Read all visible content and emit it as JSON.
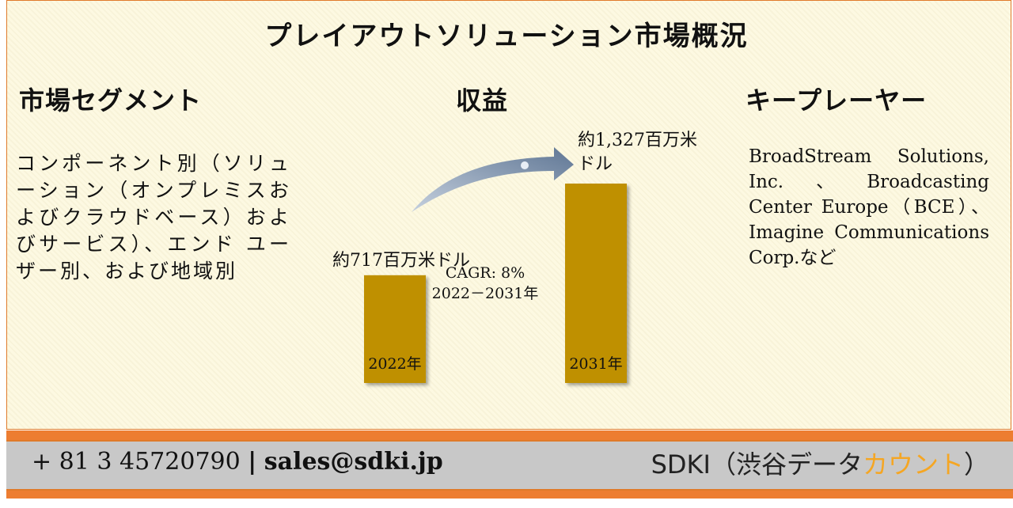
{
  "title": "プレイアウトソリューション市場概況",
  "segments": {
    "heading": "市場セグメント",
    "text": "コンポーネント別（ソリューション（オンプレミスおよびクラウドベース）およびサービス）、エンド ユーザー別、および地域別"
  },
  "revenue": {
    "heading": "収益"
  },
  "players": {
    "heading": "キープレーヤー",
    "text": "BroadStream Solutions, Inc.、Broadcasting Center Europe（BCE）、Imagine Communications Corp.など"
  },
  "chart_data": {
    "type": "bar",
    "categories": [
      "2022年",
      "2031年"
    ],
    "values": [
      717,
      1327
    ],
    "value_labels": [
      "約717百万米ドル",
      "約1,327百万米ドル"
    ],
    "annotation": [
      "CAGR: 8%",
      "2022－2031年"
    ],
    "bar_color": "#bf9000",
    "arrow_color": "#8497b0"
  },
  "footer": {
    "phone": "+ 81 3 45720790",
    "separator": "|",
    "email": "sales@sdki.jp",
    "brand_main": "SDKI（渋谷データ",
    "brand_accent": "カウント",
    "brand_end": "）",
    "accent_color": "#f5a623",
    "bar_color": "#ed7d31"
  }
}
